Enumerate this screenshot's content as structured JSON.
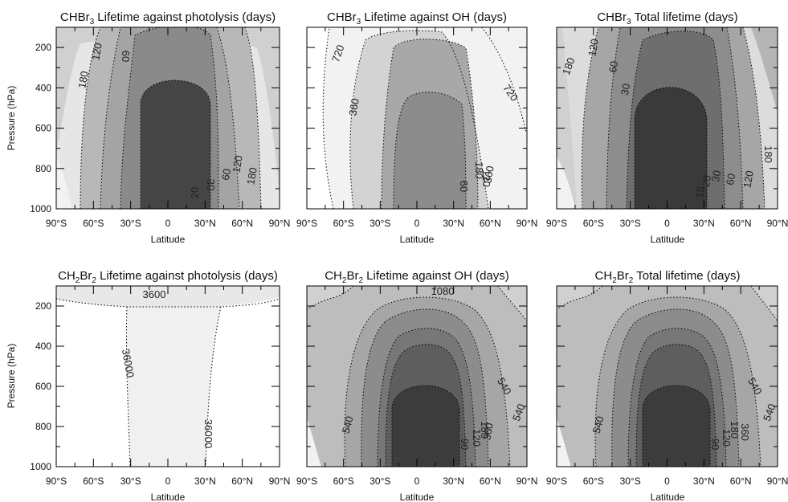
{
  "figure": {
    "x_axis_label": "Latitude",
    "y_axis_label": "Pressure (hPa)"
  },
  "chart_data": [
    {
      "type": "heatmap",
      "species": "CHBr",
      "subscript": "3",
      "title_rest": " Lifetime against photolysis (days)",
      "x_ticks": [
        "90°S",
        "60°S",
        "30°S",
        "0",
        "30°N",
        "60°N",
        "90°N"
      ],
      "y_ticks": [
        "200",
        "400",
        "600",
        "800",
        "1000"
      ],
      "xlim": [
        -90,
        90
      ],
      "ylim": [
        1000,
        100
      ],
      "contour_labels": [
        "180",
        "120",
        "60",
        "20",
        "30",
        "60",
        "120",
        "180"
      ]
    },
    {
      "type": "heatmap",
      "species": "CHBr",
      "subscript": "3",
      "title_rest": " Lifetime against OH (days)",
      "x_ticks": [
        "90°S",
        "60°S",
        "30°S",
        "0",
        "30°N",
        "60°N",
        "90°N"
      ],
      "y_ticks": [
        "200",
        "400",
        "600",
        "800",
        "1000"
      ],
      "xlim": [
        -90,
        90
      ],
      "ylim": [
        1000,
        100
      ],
      "contour_labels": [
        "720",
        "360",
        "720",
        "60",
        "180",
        "120",
        "360"
      ]
    },
    {
      "type": "heatmap",
      "species": "CHBr",
      "subscript": "3",
      "title_rest": " Total lifetime (days)",
      "x_ticks": [
        "90°S",
        "60°S",
        "30°S",
        "0",
        "30°N",
        "60°N",
        "90°N"
      ],
      "y_ticks": [
        "200",
        "400",
        "600",
        "800",
        "1000"
      ],
      "xlim": [
        -90,
        90
      ],
      "ylim": [
        1000,
        100
      ],
      "contour_labels": [
        "180",
        "120",
        "60",
        "30",
        "15",
        "20",
        "30",
        "60",
        "120",
        "180"
      ]
    },
    {
      "type": "heatmap",
      "species": "CH",
      "subscript": "2",
      "species2": "Br",
      "subscript2": "2",
      "title_rest": " Lifetime against photolysis (days)",
      "x_ticks": [
        "90°S",
        "60°S",
        "30°S",
        "0",
        "30°N",
        "60°N",
        "90°N"
      ],
      "y_ticks": [
        "200",
        "400",
        "600",
        "800",
        "1000"
      ],
      "xlim": [
        -90,
        90
      ],
      "ylim": [
        1000,
        100
      ],
      "contour_labels": [
        "3600",
        "36000",
        "36000"
      ]
    },
    {
      "type": "heatmap",
      "species": "CH",
      "subscript": "2",
      "species2": "Br",
      "subscript2": "2",
      "title_rest": " Lifetime against OH (days)",
      "x_ticks": [
        "90°S",
        "60°S",
        "30°S",
        "0",
        "30°N",
        "60°N",
        "90°N"
      ],
      "y_ticks": [
        "200",
        "400",
        "600",
        "800",
        "1000"
      ],
      "xlim": [
        -90,
        90
      ],
      "ylim": [
        1000,
        100
      ],
      "contour_labels": [
        "1080",
        "540",
        "540",
        "540",
        "90",
        "120",
        "180",
        "360"
      ]
    },
    {
      "type": "heatmap",
      "species": "CH",
      "subscript": "2",
      "species2": "Br",
      "subscript2": "2",
      "title_rest": " Total lifetime (days)",
      "x_ticks": [
        "90°S",
        "60°S",
        "30°S",
        "0",
        "30°N",
        "60°N",
        "90°N"
      ],
      "y_ticks": [
        "200",
        "400",
        "600",
        "800",
        "1000"
      ],
      "xlim": [
        -90,
        90
      ],
      "ylim": [
        1000,
        100
      ],
      "contour_labels": [
        "540",
        "540",
        "540",
        "90",
        "120",
        "180",
        "360"
      ]
    }
  ]
}
